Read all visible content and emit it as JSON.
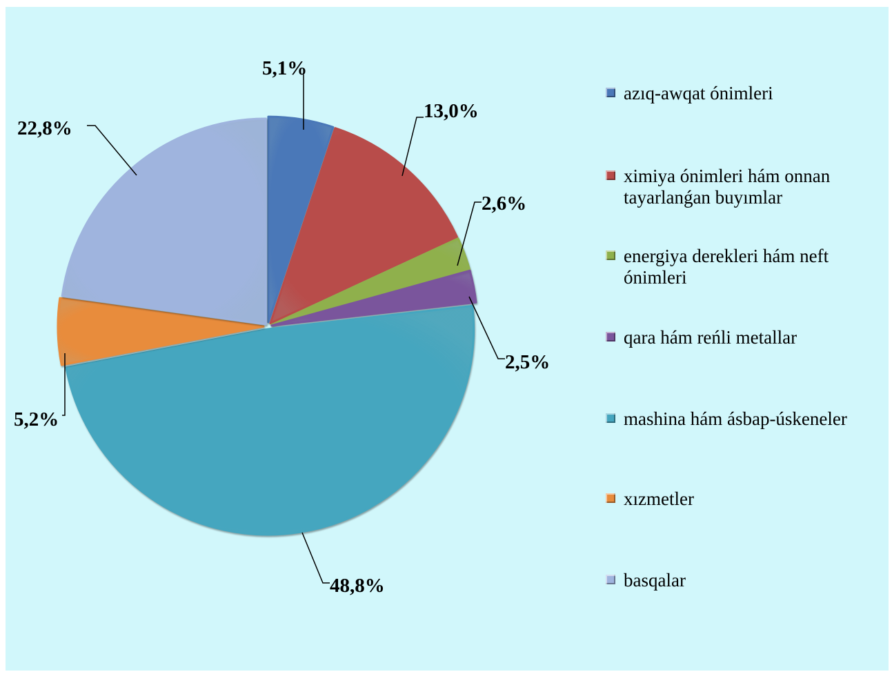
{
  "chart_data": {
    "type": "pie",
    "title": "",
    "categories": [
      "azıq-awqat ónimleri",
      "ximiya ónimleri  hám onnan tayarlanǵan buyımlar",
      "energiya derekleri hám neft ónimleri",
      "qara hám reńli metallar",
      "mashina hám ásbap-úskeneler",
      "xızmetler",
      "basqalar"
    ],
    "values": [
      5.1,
      13.0,
      2.6,
      2.5,
      48.8,
      5.2,
      22.8
    ],
    "labels": [
      "5,1%",
      "13,0%",
      "2,6%",
      "2,5%",
      "48,8%",
      "5,2%",
      "22,8%"
    ],
    "colors": [
      "#4a78b8",
      "#b84c4a",
      "#8fb04c",
      "#7a559c",
      "#45a6bf",
      "#e88c3c",
      "#9fb4de"
    ],
    "legend_position": "right",
    "start_angle": "12 o'clock",
    "direction": "clockwise"
  }
}
